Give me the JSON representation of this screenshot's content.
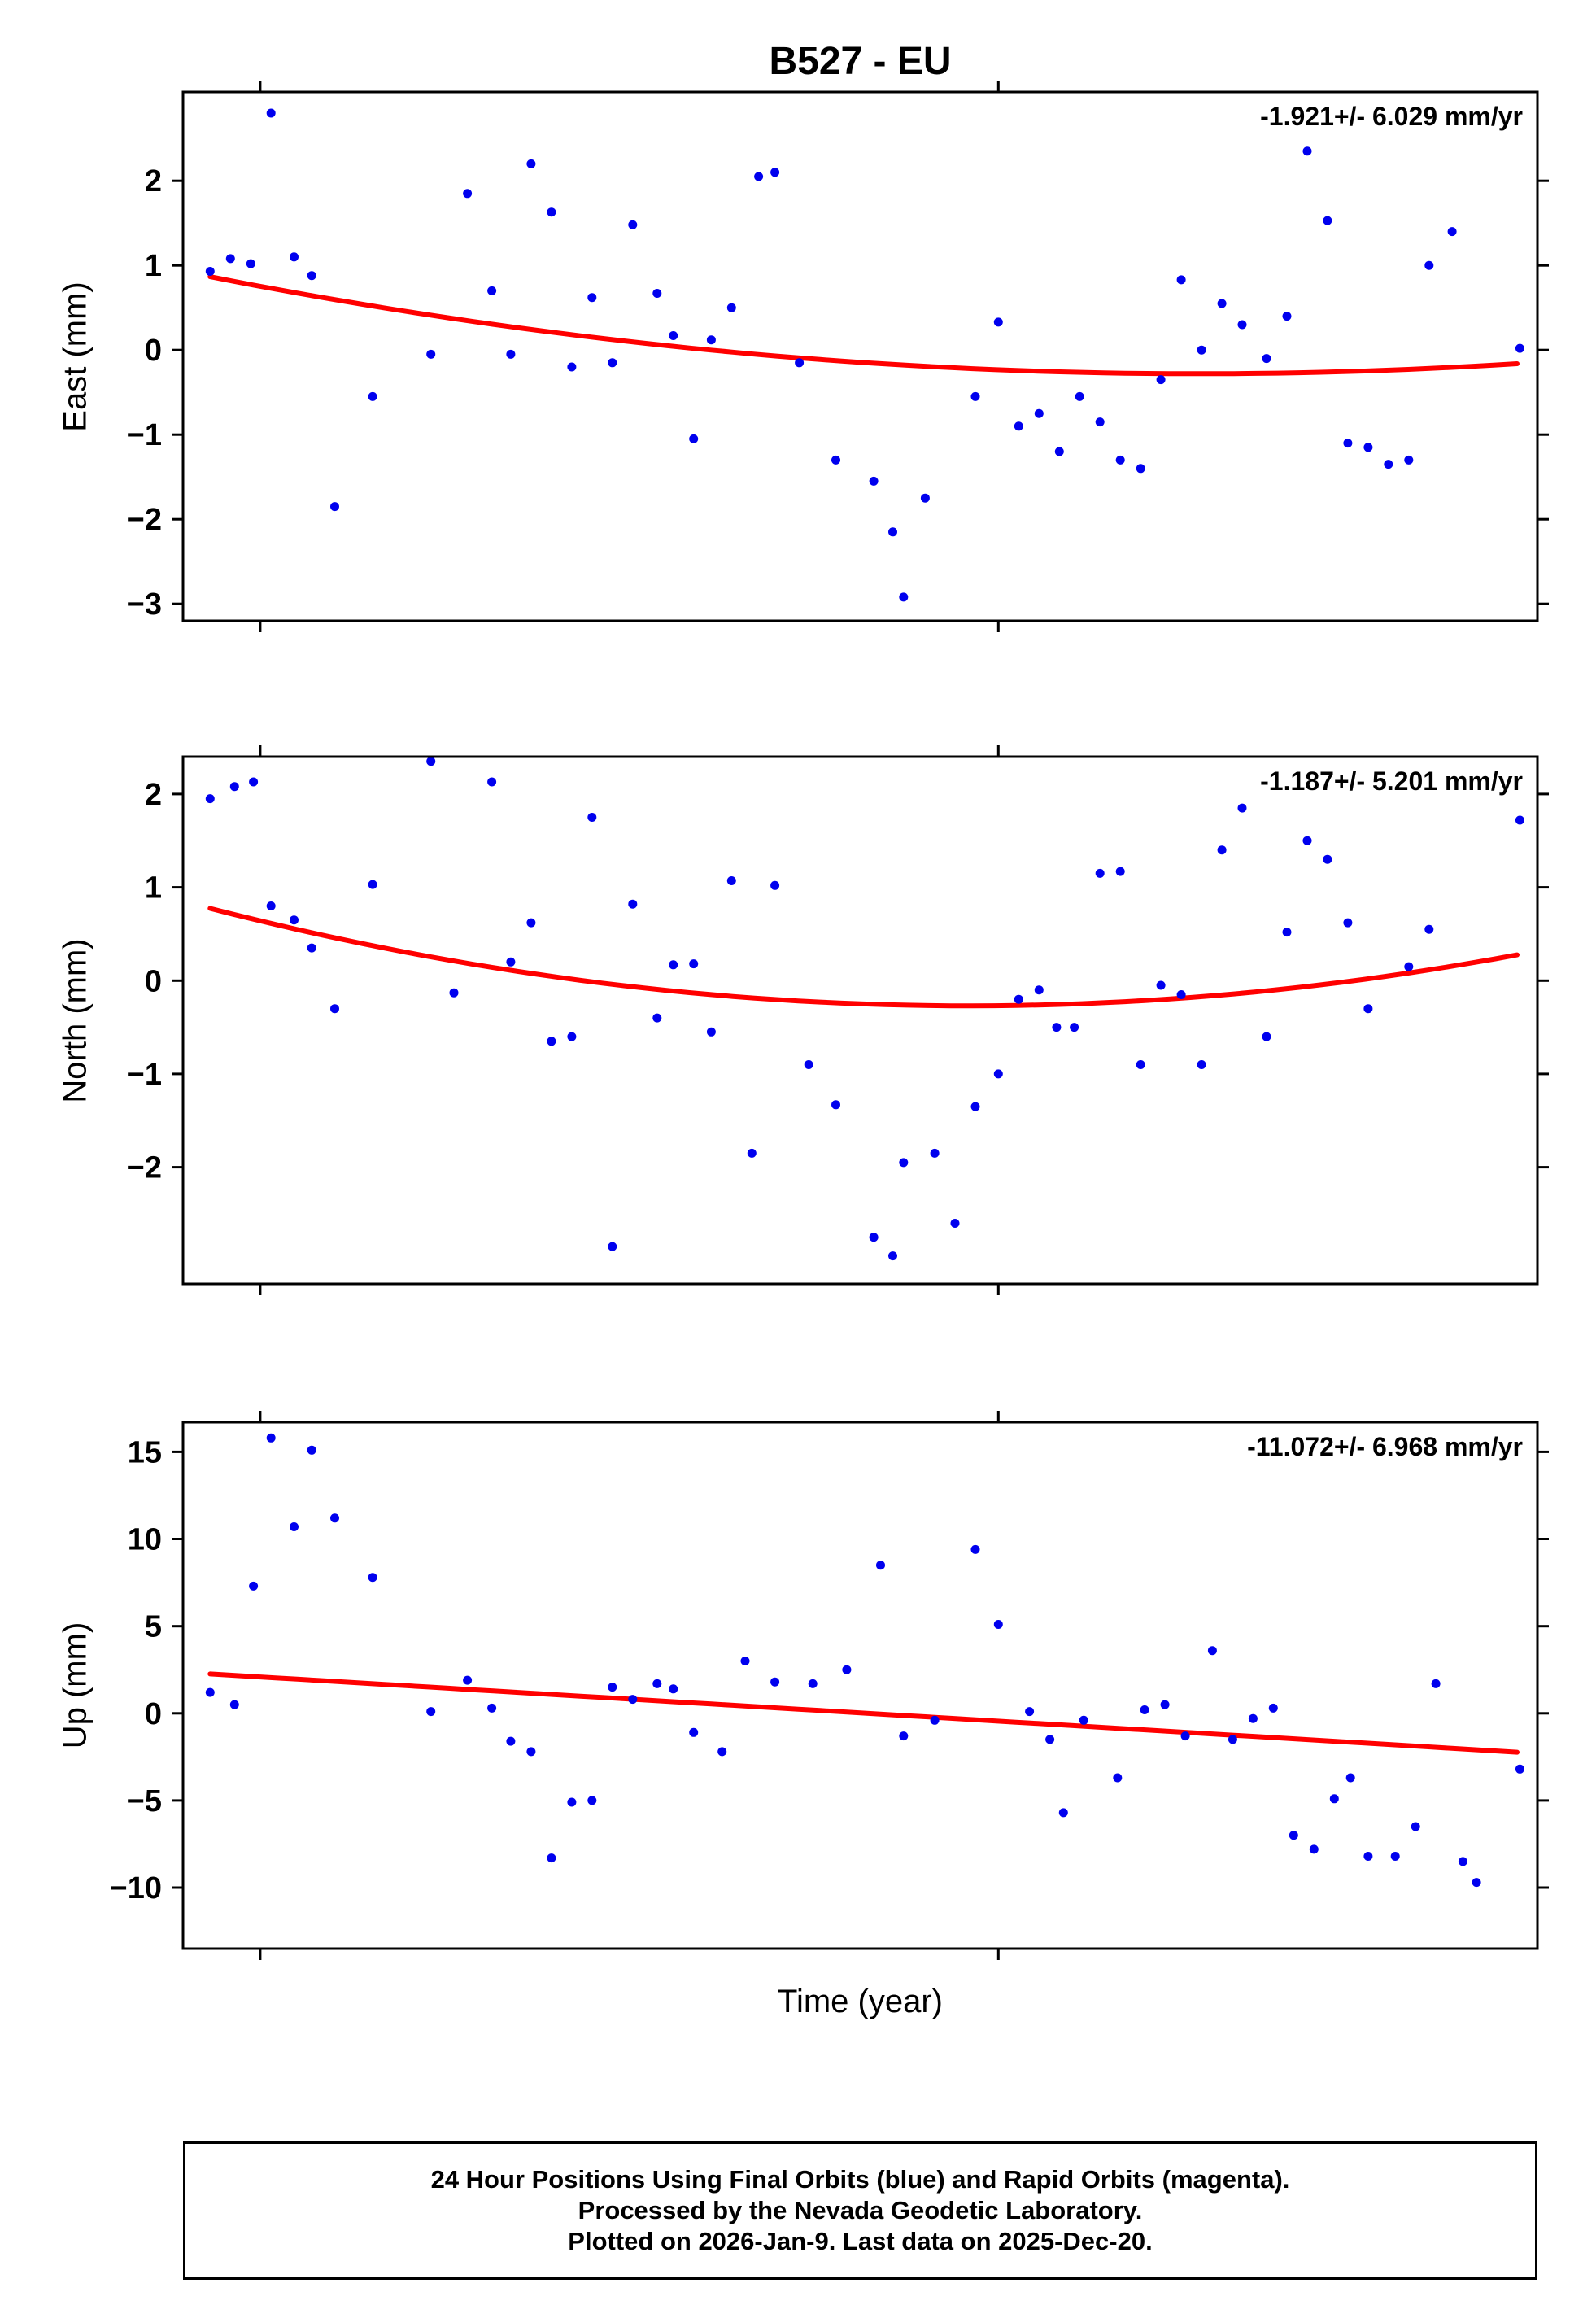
{
  "title": "B527 - EU",
  "xlabel": "Time (year)",
  "colors": {
    "point": "#0000ee",
    "trend": "#ff0000",
    "frame": "#000000"
  },
  "footer": {
    "lines": [
      "24 Hour Positions Using Final Orbits (blue) and Rapid Orbits (magenta).",
      "Processed by the Nevada Geodetic Laboratory.",
      "Plotted on 2026-Jan-9. Last data on 2025-Dec-20."
    ]
  },
  "chart_data": {
    "type": "scatter",
    "title": "B527 - EU",
    "xlabel": "Time (year)",
    "x_axis": {
      "range": [
        0,
        1
      ],
      "ticks": [
        0.057,
        0.602
      ],
      "tick_labels": []
    },
    "panels": [
      {
        "name": "east",
        "ylabel": "East (mm)",
        "rate_label": "-1.921+/- 6.029 mm/yr",
        "ylim": [
          -3.2,
          3.05
        ],
        "yticks": [
          -3,
          -2,
          -1,
          0,
          1,
          2
        ],
        "trend": {
          "type": "quadratic",
          "y_at_x0": 0.93,
          "vertex_x": 0.75,
          "vertex_y": -0.28
        },
        "points": [
          [
            0.02,
            0.93
          ],
          [
            0.035,
            1.08
          ],
          [
            0.05,
            1.02
          ],
          [
            0.065,
            2.8
          ],
          [
            0.082,
            1.1
          ],
          [
            0.095,
            0.88
          ],
          [
            0.112,
            -1.85
          ],
          [
            0.14,
            -0.55
          ],
          [
            0.183,
            -0.05
          ],
          [
            0.21,
            1.85
          ],
          [
            0.228,
            0.7
          ],
          [
            0.242,
            -0.05
          ],
          [
            0.257,
            2.2
          ],
          [
            0.272,
            1.63
          ],
          [
            0.287,
            -0.2
          ],
          [
            0.302,
            0.62
          ],
          [
            0.317,
            -0.15
          ],
          [
            0.332,
            1.48
          ],
          [
            0.35,
            0.67
          ],
          [
            0.362,
            0.17
          ],
          [
            0.377,
            -1.05
          ],
          [
            0.39,
            0.12
          ],
          [
            0.405,
            0.5
          ],
          [
            0.425,
            2.05
          ],
          [
            0.437,
            2.1
          ],
          [
            0.455,
            -0.15
          ],
          [
            0.482,
            -1.3
          ],
          [
            0.51,
            -1.55
          ],
          [
            0.524,
            -2.15
          ],
          [
            0.532,
            -2.92
          ],
          [
            0.548,
            -1.75
          ],
          [
            0.585,
            -0.55
          ],
          [
            0.602,
            0.33
          ],
          [
            0.617,
            -0.9
          ],
          [
            0.632,
            -0.75
          ],
          [
            0.647,
            -1.2
          ],
          [
            0.662,
            -0.55
          ],
          [
            0.677,
            -0.85
          ],
          [
            0.692,
            -1.3
          ],
          [
            0.707,
            -1.4
          ],
          [
            0.722,
            -0.35
          ],
          [
            0.737,
            0.83
          ],
          [
            0.752,
            0.0
          ],
          [
            0.767,
            0.55
          ],
          [
            0.782,
            0.3
          ],
          [
            0.8,
            -0.1
          ],
          [
            0.815,
            0.4
          ],
          [
            0.83,
            2.35
          ],
          [
            0.845,
            1.53
          ],
          [
            0.86,
            -1.1
          ],
          [
            0.875,
            -1.15
          ],
          [
            0.89,
            -1.35
          ],
          [
            0.905,
            -1.3
          ],
          [
            0.92,
            1.0
          ],
          [
            0.937,
            1.4
          ],
          [
            0.987,
            0.02
          ]
        ]
      },
      {
        "name": "north",
        "ylabel": "North (mm)",
        "rate_label": "-1.187+/- 5.201 mm/yr",
        "ylim": [
          -3.25,
          2.4
        ],
        "yticks": [
          -2,
          -1,
          0,
          1,
          2
        ],
        "trend": {
          "type": "quadratic",
          "y_at_x0": 0.85,
          "vertex_x": 0.58,
          "vertex_y": -0.27
        },
        "points": [
          [
            0.02,
            1.95
          ],
          [
            0.038,
            2.08
          ],
          [
            0.052,
            2.13
          ],
          [
            0.065,
            0.8
          ],
          [
            0.082,
            0.65
          ],
          [
            0.095,
            0.35
          ],
          [
            0.112,
            -0.3
          ],
          [
            0.14,
            1.03
          ],
          [
            0.183,
            2.35
          ],
          [
            0.2,
            -0.13
          ],
          [
            0.228,
            2.13
          ],
          [
            0.242,
            0.2
          ],
          [
            0.257,
            0.62
          ],
          [
            0.272,
            -0.65
          ],
          [
            0.287,
            -0.6
          ],
          [
            0.302,
            1.75
          ],
          [
            0.317,
            -2.85
          ],
          [
            0.332,
            0.82
          ],
          [
            0.35,
            -0.4
          ],
          [
            0.362,
            0.17
          ],
          [
            0.377,
            0.18
          ],
          [
            0.39,
            -0.55
          ],
          [
            0.405,
            1.07
          ],
          [
            0.42,
            -1.85
          ],
          [
            0.437,
            1.02
          ],
          [
            0.462,
            -0.9
          ],
          [
            0.482,
            -1.33
          ],
          [
            0.51,
            -2.75
          ],
          [
            0.524,
            -2.95
          ],
          [
            0.532,
            -1.95
          ],
          [
            0.555,
            -1.85
          ],
          [
            0.57,
            -2.6
          ],
          [
            0.585,
            -1.35
          ],
          [
            0.602,
            -1.0
          ],
          [
            0.617,
            -0.2
          ],
          [
            0.632,
            -0.1
          ],
          [
            0.645,
            -0.5
          ],
          [
            0.658,
            -0.5
          ],
          [
            0.677,
            1.15
          ],
          [
            0.692,
            1.17
          ],
          [
            0.707,
            -0.9
          ],
          [
            0.722,
            -0.05
          ],
          [
            0.737,
            -0.15
          ],
          [
            0.752,
            -0.9
          ],
          [
            0.767,
            1.4
          ],
          [
            0.782,
            1.85
          ],
          [
            0.8,
            -0.6
          ],
          [
            0.815,
            0.52
          ],
          [
            0.83,
            1.5
          ],
          [
            0.845,
            1.3
          ],
          [
            0.86,
            0.62
          ],
          [
            0.875,
            -0.3
          ],
          [
            0.905,
            0.15
          ],
          [
            0.92,
            0.55
          ],
          [
            0.987,
            1.72
          ]
        ]
      },
      {
        "name": "up",
        "ylabel": "Up (mm)",
        "rate_label": "-11.072+/- 6.968 mm/yr",
        "ylim": [
          -13.5,
          16.7
        ],
        "yticks": [
          -10,
          -5,
          0,
          5,
          10,
          15
        ],
        "trend": {
          "type": "linear",
          "y_at_x0": 2.35,
          "y_at_x1": -2.3
        },
        "points": [
          [
            0.02,
            1.2
          ],
          [
            0.038,
            0.5
          ],
          [
            0.052,
            7.3
          ],
          [
            0.065,
            15.8
          ],
          [
            0.082,
            10.7
          ],
          [
            0.095,
            15.1
          ],
          [
            0.112,
            11.2
          ],
          [
            0.14,
            7.8
          ],
          [
            0.183,
            0.1
          ],
          [
            0.21,
            1.9
          ],
          [
            0.228,
            0.3
          ],
          [
            0.242,
            -1.6
          ],
          [
            0.257,
            -2.2
          ],
          [
            0.272,
            -8.3
          ],
          [
            0.287,
            -5.1
          ],
          [
            0.302,
            -5.0
          ],
          [
            0.317,
            1.5
          ],
          [
            0.332,
            0.8
          ],
          [
            0.35,
            1.7
          ],
          [
            0.362,
            1.4
          ],
          [
            0.377,
            -1.1
          ],
          [
            0.398,
            -2.2
          ],
          [
            0.415,
            3.0
          ],
          [
            0.437,
            1.8
          ],
          [
            0.465,
            1.7
          ],
          [
            0.49,
            2.5
          ],
          [
            0.515,
            8.5
          ],
          [
            0.532,
            -1.3
          ],
          [
            0.555,
            -0.4
          ],
          [
            0.585,
            9.4
          ],
          [
            0.602,
            5.1
          ],
          [
            0.625,
            0.1
          ],
          [
            0.64,
            -1.5
          ],
          [
            0.65,
            -5.7
          ],
          [
            0.665,
            -0.4
          ],
          [
            0.69,
            -3.7
          ],
          [
            0.71,
            0.2
          ],
          [
            0.725,
            0.5
          ],
          [
            0.74,
            -1.3
          ],
          [
            0.76,
            3.6
          ],
          [
            0.775,
            -1.5
          ],
          [
            0.79,
            -0.3
          ],
          [
            0.805,
            0.3
          ],
          [
            0.82,
            -7.0
          ],
          [
            0.835,
            -7.8
          ],
          [
            0.85,
            -4.9
          ],
          [
            0.862,
            -3.7
          ],
          [
            0.875,
            -8.2
          ],
          [
            0.895,
            -8.2
          ],
          [
            0.91,
            -6.5
          ],
          [
            0.925,
            1.7
          ],
          [
            0.945,
            -8.5
          ],
          [
            0.955,
            -9.7
          ],
          [
            0.987,
            -3.2
          ]
        ]
      }
    ]
  }
}
